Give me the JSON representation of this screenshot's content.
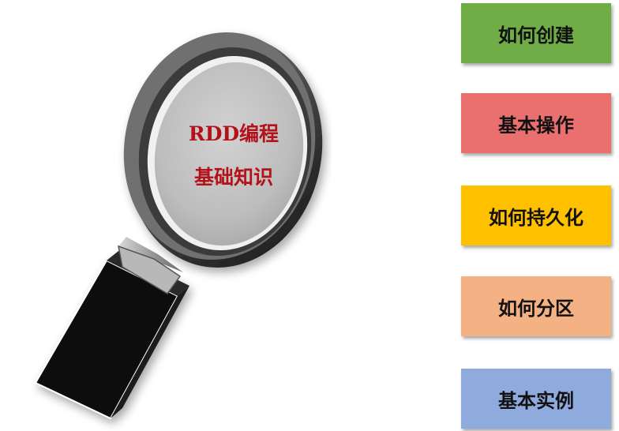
{
  "lens": {
    "line1": "RDD编程",
    "line2": "基础知识",
    "text_color": "#b3121a"
  },
  "topics": [
    {
      "label": "如何创建",
      "color": "#70ad47"
    },
    {
      "label": "基本操作",
      "color": "#ea7070"
    },
    {
      "label": "如何持久化",
      "color": "#ffc000"
    },
    {
      "label": "如何分区",
      "color": "#f4b183"
    },
    {
      "label": "基本实例",
      "color": "#8faadc"
    }
  ]
}
